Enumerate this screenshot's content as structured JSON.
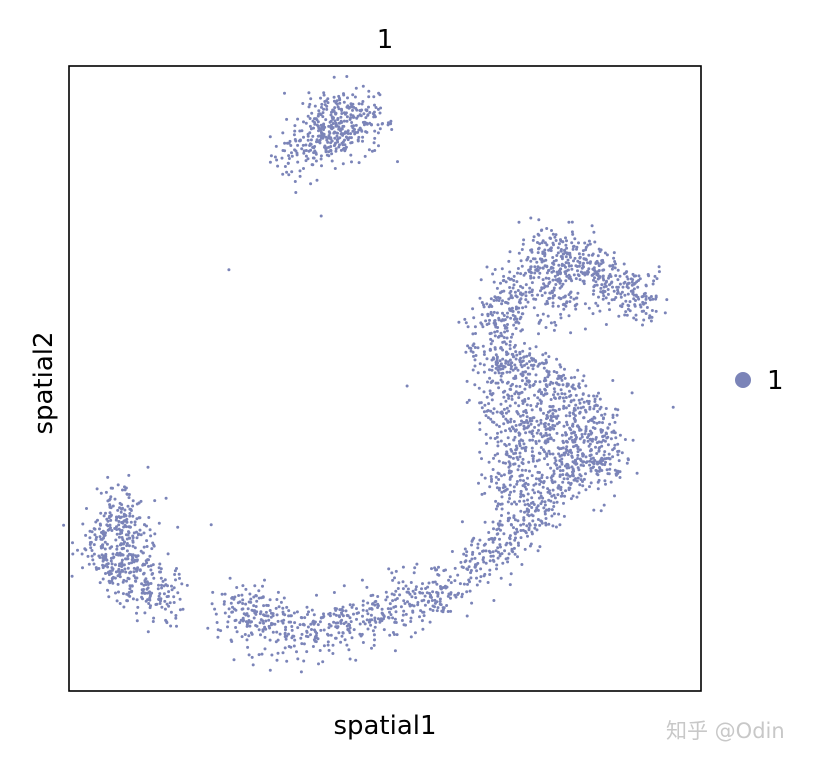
{
  "chart_data": {
    "type": "scatter",
    "title": "1",
    "xlabel": "spatial1",
    "ylabel": "spatial2",
    "xlim": [
      0,
      100
    ],
    "ylim": [
      0,
      100
    ],
    "grid": false,
    "ticks": false,
    "legend": {
      "placement": "right",
      "entries": [
        {
          "label": "1",
          "color": "#7b84b8"
        }
      ]
    },
    "color": "#7b84b8",
    "cluster_centers": [
      [
        36.6,
        85.8
      ],
      [
        39.7,
        89
      ],
      [
        42.1,
        93
      ],
      [
        44.5,
        91.4
      ],
      [
        46.8,
        90.6
      ],
      [
        41.3,
        88.2
      ],
      [
        5.7,
        24.2
      ],
      [
        8.1,
        29
      ],
      [
        8.9,
        25.8
      ],
      [
        9.7,
        21
      ],
      [
        12,
        17.8
      ],
      [
        13.6,
        14.6
      ],
      [
        7.3,
        19.4
      ],
      [
        27.1,
        13
      ],
      [
        30.2,
        11.4
      ],
      [
        35,
        9.8
      ],
      [
        39.7,
        9.8
      ],
      [
        44.5,
        10.6
      ],
      [
        49.1,
        12.2
      ],
      [
        54,
        13.8
      ],
      [
        58.7,
        16.2
      ],
      [
        63.4,
        19.4
      ],
      [
        68.2,
        23.4
      ],
      [
        71.4,
        27.4
      ],
      [
        74.5,
        30.6
      ],
      [
        77.7,
        33.8
      ],
      [
        80.9,
        37
      ],
      [
        83.2,
        40.2
      ],
      [
        82.4,
        43.4
      ],
      [
        79.3,
        46.6
      ],
      [
        75.3,
        49.8
      ],
      [
        71.4,
        51.4
      ],
      [
        68.2,
        49.8
      ],
      [
        67.4,
        54.6
      ],
      [
        68.2,
        59.4
      ],
      [
        69.8,
        62.6
      ],
      [
        72.9,
        65.8
      ],
      [
        75.3,
        69
      ],
      [
        77.7,
        70.6
      ],
      [
        80.9,
        68.2
      ],
      [
        84,
        65.8
      ],
      [
        87.2,
        64.2
      ],
      [
        90.3,
        63.4
      ],
      [
        77.7,
        62.6
      ],
      [
        74.5,
        43.4
      ],
      [
        71.4,
        38.6
      ],
      [
        69,
        33.8
      ],
      [
        77.7,
        40.2
      ],
      [
        84,
        35.4
      ],
      [
        68.2,
        43.4
      ]
    ],
    "outliers": [
      [
        39.9,
        76
      ],
      [
        25.3,
        67.4
      ],
      [
        61.7,
        59
      ],
      [
        53.5,
        48.8
      ],
      [
        71.2,
        75
      ],
      [
        89.1,
        47.7
      ],
      [
        95.6,
        45.4
      ],
      [
        12.5,
        35.8
      ],
      [
        22.5,
        26.6
      ],
      [
        17.2,
        26.2
      ],
      [
        26.1,
        5
      ],
      [
        23.6,
        9.8
      ]
    ]
  },
  "watermark": "知乎 @Odin"
}
